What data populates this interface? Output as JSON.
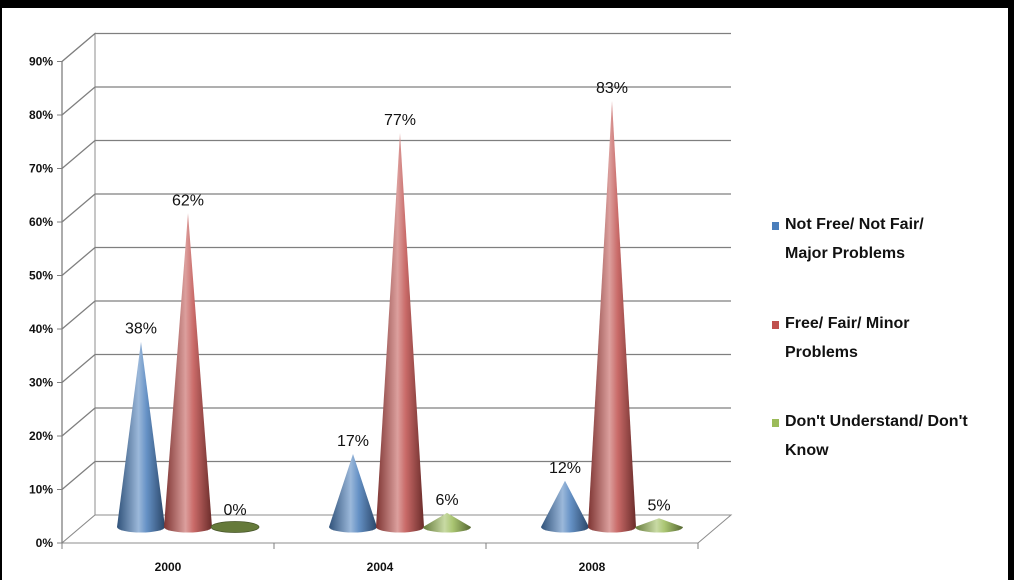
{
  "chart_data": {
    "type": "bar",
    "shape": "cone",
    "title": "",
    "xlabel": "",
    "ylabel": "",
    "categories": [
      "2000",
      "2004",
      "2008"
    ],
    "ylim": [
      0,
      90
    ],
    "yticks": [
      0,
      10,
      20,
      30,
      40,
      50,
      60,
      70,
      80,
      90
    ],
    "ytick_labels": [
      "0%",
      "10%",
      "20%",
      "30%",
      "40%",
      "50%",
      "60%",
      "70%",
      "80%",
      "90%"
    ],
    "grid": true,
    "legend_position": "right",
    "series": [
      {
        "name": "Not Free/ Not Fair/ Major Problems",
        "legend_lines": [
          "Not Free/ Not Fair/",
          "Major Problems"
        ],
        "color": "#4A7EBB",
        "values": [
          38,
          17,
          12
        ],
        "labels": [
          "38%",
          "17%",
          "12%"
        ]
      },
      {
        "name": "Free/ Fair/ Minor Problems",
        "legend_lines": [
          "Free/ Fair/ Minor",
          "Problems"
        ],
        "color": "#C0504D",
        "values": [
          62,
          77,
          83
        ],
        "labels": [
          "62%",
          "77%",
          "83%"
        ]
      },
      {
        "name": "Don't Understand/ Don't Know",
        "legend_lines": [
          "Don't Understand/ Don't",
          "Know"
        ],
        "color": "#9BBB59",
        "values": [
          0,
          6,
          5
        ],
        "labels": [
          "0%",
          "6%",
          "5%"
        ]
      }
    ]
  }
}
